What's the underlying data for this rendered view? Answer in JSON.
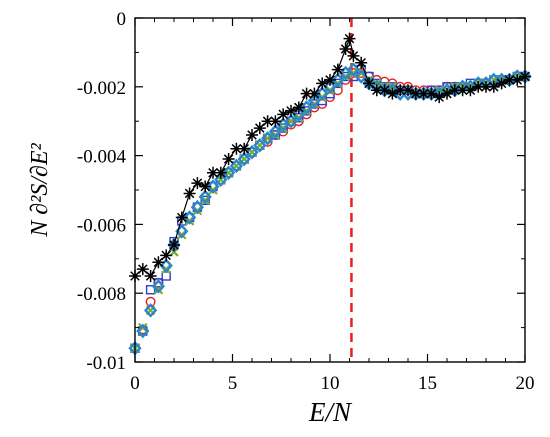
{
  "chart_data": {
    "type": "scatter",
    "title": "",
    "xlabel": "E/N",
    "ylabel": "N ∂²S/∂E²",
    "xlim": [
      0,
      20
    ],
    "ylim": [
      -0.01,
      0
    ],
    "xticks": [
      0,
      5,
      10,
      15,
      20
    ],
    "yticks": [
      0,
      -0.002,
      -0.004,
      -0.006,
      -0.008,
      -0.01
    ],
    "xtick_labels": [
      "0",
      "5",
      "10",
      "15",
      "20"
    ],
    "ytick_labels": [
      "0",
      "-0.002",
      "-0.004",
      "-0.006",
      "-0.008",
      "-0.01"
    ],
    "grid": false,
    "legend": "none",
    "vline": {
      "x": 11.1,
      "color": "#e8211f",
      "style": "dashed"
    },
    "series": [
      {
        "marker": "circle",
        "color": "#e8211f",
        "line": false,
        "x": [
          0.0,
          0.4,
          0.8,
          1.2,
          1.6,
          2.0,
          2.4,
          2.8,
          3.2,
          3.6,
          4.0,
          4.4,
          4.8,
          5.2,
          5.6,
          6.0,
          6.4,
          6.8,
          7.2,
          7.6,
          8.0,
          8.4,
          8.8,
          9.2,
          9.6,
          10.0,
          10.4,
          10.8,
          11.2,
          11.6,
          12.0,
          12.4,
          12.8,
          13.2,
          13.6,
          14.0,
          14.4,
          14.8,
          15.2,
          15.6,
          16.0,
          16.4,
          16.8,
          17.2,
          17.6,
          18.0,
          18.4,
          18.8,
          19.2,
          19.6,
          20.0
        ],
        "y": [
          -0.0096,
          -0.00905,
          -0.00825,
          -0.0077,
          -0.0072,
          -0.00665,
          -0.0062,
          -0.0058,
          -0.0055,
          -0.0052,
          -0.0049,
          -0.0047,
          -0.0045,
          -0.0043,
          -0.0041,
          -0.0039,
          -0.0037,
          -0.0036,
          -0.0034,
          -0.0033,
          -0.0031,
          -0.003,
          -0.0028,
          -0.0026,
          -0.0025,
          -0.0023,
          -0.0021,
          -0.0018,
          -0.0016,
          -0.0016,
          -0.0017,
          -0.0018,
          -0.00185,
          -0.0019,
          -0.002,
          -0.002,
          -0.0021,
          -0.0021,
          -0.0021,
          -0.0021,
          -0.002,
          -0.002,
          -0.002,
          -0.002,
          -0.0019,
          -0.0019,
          -0.0018,
          -0.0018,
          -0.0018,
          -0.0017,
          -0.0017
        ]
      },
      {
        "marker": "square",
        "color": "#2a3fd6",
        "line": false,
        "x": [
          0.0,
          0.4,
          0.8,
          1.2,
          1.6,
          2.0,
          2.4,
          2.8,
          3.2,
          3.6,
          4.0,
          4.4,
          4.8,
          5.2,
          5.6,
          6.0,
          6.4,
          6.8,
          7.2,
          7.6,
          8.0,
          8.4,
          8.8,
          9.2,
          9.6,
          10.0,
          10.4,
          10.8,
          11.2,
          11.6,
          12.0,
          12.4,
          12.8,
          13.2,
          13.6,
          14.0,
          14.4,
          14.8,
          15.2,
          15.6,
          16.0,
          16.4,
          16.8,
          17.2,
          17.6,
          18.0,
          18.4,
          18.8,
          19.2,
          19.6,
          20.0
        ],
        "y": [
          -0.0096,
          -0.0091,
          -0.0079,
          -0.0077,
          -0.0075,
          -0.0065,
          -0.0059,
          -0.0058,
          -0.0055,
          -0.0053,
          -0.0049,
          -0.0047,
          -0.0045,
          -0.0043,
          -0.0041,
          -0.0039,
          -0.0037,
          -0.0035,
          -0.0034,
          -0.0032,
          -0.003,
          -0.0029,
          -0.0027,
          -0.0025,
          -0.0024,
          -0.0022,
          -0.0019,
          -0.0017,
          -0.0017,
          -0.0015,
          -0.0017,
          -0.0019,
          -0.002,
          -0.002,
          -0.0021,
          -0.0021,
          -0.0022,
          -0.0022,
          -0.0021,
          -0.0021,
          -0.002,
          -0.002,
          -0.002,
          -0.0019,
          -0.0019,
          -0.0019,
          -0.0018,
          -0.0018,
          -0.0018,
          -0.0017,
          -0.0017
        ]
      },
      {
        "marker": "cross",
        "color": "#7cae2a",
        "line": false,
        "x": [
          0.0,
          0.4,
          0.8,
          1.2,
          1.6,
          2.0,
          2.4,
          2.8,
          3.2,
          3.6,
          4.0,
          4.4,
          4.8,
          5.2,
          5.6,
          6.0,
          6.4,
          6.8,
          7.2,
          7.6,
          8.0,
          8.4,
          8.8,
          9.2,
          9.6,
          10.0,
          10.4,
          10.8,
          11.2,
          11.6,
          12.0,
          12.4,
          12.8,
          13.2,
          13.6,
          14.0,
          14.4,
          14.8,
          15.2,
          15.6,
          16.0,
          16.4,
          16.8,
          17.2,
          17.6,
          18.0,
          18.4,
          18.8,
          19.2,
          19.6,
          20.0
        ],
        "y": [
          -0.0096,
          -0.009,
          -0.0085,
          -0.0079,
          -0.0073,
          -0.0068,
          -0.0063,
          -0.0059,
          -0.0056,
          -0.0053,
          -0.005,
          -0.0047,
          -0.0045,
          -0.0043,
          -0.0041,
          -0.0039,
          -0.0037,
          -0.0035,
          -0.0034,
          -0.0032,
          -0.003,
          -0.0029,
          -0.0027,
          -0.0025,
          -0.0023,
          -0.0021,
          -0.0019,
          -0.0017,
          -0.0016,
          -0.0016,
          -0.0018,
          -0.0019,
          -0.002,
          -0.002,
          -0.0021,
          -0.0021,
          -0.0022,
          -0.0022,
          -0.0022,
          -0.0021,
          -0.0021,
          -0.002,
          -0.002,
          -0.002,
          -0.0019,
          -0.0019,
          -0.0018,
          -0.0018,
          -0.0018,
          -0.0017,
          -0.0017
        ]
      },
      {
        "marker": "diamond",
        "color": "#2a86c9",
        "line": false,
        "x": [
          0.0,
          0.4,
          0.8,
          1.2,
          1.6,
          2.0,
          2.4,
          2.8,
          3.2,
          3.6,
          4.0,
          4.4,
          4.8,
          5.2,
          5.6,
          6.0,
          6.4,
          6.8,
          7.2,
          7.6,
          8.0,
          8.4,
          8.8,
          9.2,
          9.6,
          10.0,
          10.4,
          10.8,
          11.2,
          11.6,
          12.0,
          12.4,
          12.8,
          13.2,
          13.6,
          14.0,
          14.4,
          14.8,
          15.2,
          15.6,
          16.0,
          16.4,
          16.8,
          17.2,
          17.6,
          18.0,
          18.4,
          18.8,
          19.2,
          19.6,
          20.0
        ],
        "y": [
          -0.0096,
          -0.0091,
          -0.0085,
          -0.0078,
          -0.0072,
          -0.0066,
          -0.0062,
          -0.0058,
          -0.0055,
          -0.0052,
          -0.0049,
          -0.0047,
          -0.0045,
          -0.0043,
          -0.0041,
          -0.0039,
          -0.0037,
          -0.0035,
          -0.0033,
          -0.0031,
          -0.003,
          -0.0028,
          -0.0026,
          -0.0024,
          -0.0022,
          -0.002,
          -0.0018,
          -0.0016,
          -0.0015,
          -0.0017,
          -0.0019,
          -0.002,
          -0.0021,
          -0.0021,
          -0.0022,
          -0.0022,
          -0.0022,
          -0.0022,
          -0.0022,
          -0.0022,
          -0.0021,
          -0.0021,
          -0.002,
          -0.002,
          -0.0019,
          -0.0019,
          -0.0018,
          -0.0018,
          -0.0018,
          -0.0017,
          -0.0017
        ]
      },
      {
        "marker": "asterisk",
        "color": "#000000",
        "line": true,
        "x": [
          0.0,
          0.4,
          0.8,
          1.2,
          1.6,
          2.0,
          2.4,
          2.8,
          3.2,
          3.6,
          4.0,
          4.4,
          4.8,
          5.2,
          5.6,
          6.0,
          6.4,
          6.8,
          7.2,
          7.6,
          8.0,
          8.4,
          8.8,
          9.2,
          9.6,
          10.0,
          10.4,
          10.8,
          11.0,
          11.2,
          11.6,
          12.0,
          12.4,
          12.8,
          13.2,
          13.6,
          14.0,
          14.4,
          14.8,
          15.2,
          15.6,
          16.0,
          16.4,
          16.8,
          17.2,
          17.6,
          18.0,
          18.4,
          18.8,
          19.2,
          19.6,
          20.0
        ],
        "y": [
          -0.0075,
          -0.0073,
          -0.0075,
          -0.0071,
          -0.0069,
          -0.0066,
          -0.0058,
          -0.0051,
          -0.0048,
          -0.0049,
          -0.0045,
          -0.0045,
          -0.0041,
          -0.0038,
          -0.0038,
          -0.0034,
          -0.0032,
          -0.003,
          -0.003,
          -0.0028,
          -0.0027,
          -0.0026,
          -0.0022,
          -0.0022,
          -0.0019,
          -0.0018,
          -0.0015,
          -0.0009,
          -0.0006,
          -0.0011,
          -0.0013,
          -0.0019,
          -0.0021,
          -0.0021,
          -0.0022,
          -0.0021,
          -0.0021,
          -0.0022,
          -0.0022,
          -0.0022,
          -0.0023,
          -0.0022,
          -0.0021,
          -0.0021,
          -0.0021,
          -0.002,
          -0.002,
          -0.002,
          -0.0019,
          -0.0018,
          -0.0018,
          -0.0017
        ]
      }
    ]
  }
}
